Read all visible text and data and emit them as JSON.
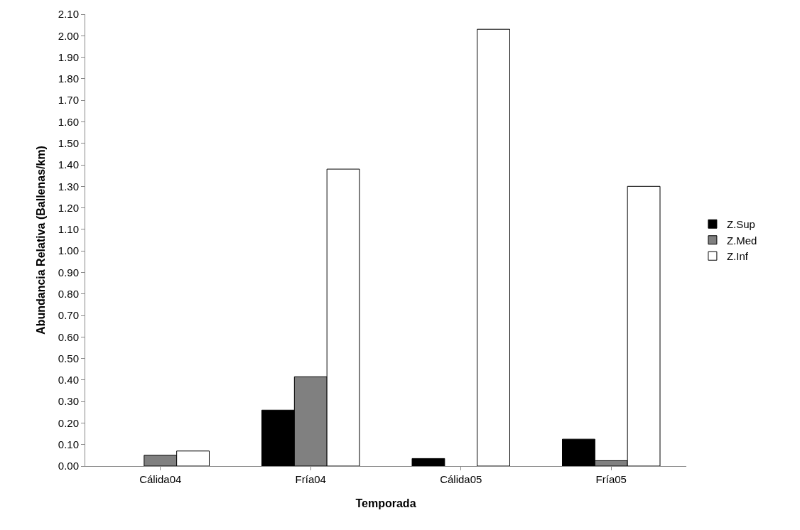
{
  "chart_data": {
    "type": "bar",
    "xlabel": "Temporada",
    "ylabel": "Abundancia Relativa (Ballenas/km)",
    "categories": [
      "Cálida04",
      "Fría04",
      "Cálida05",
      "Fría05"
    ],
    "series": [
      {
        "name": "Z.Sup",
        "color": "#000000",
        "values": [
          null,
          0.26,
          0.035,
          0.125
        ]
      },
      {
        "name": "Z.Med",
        "color": "#808080",
        "values": [
          0.05,
          0.415,
          null,
          0.025
        ]
      },
      {
        "name": "Z.Inf",
        "color": "#ffffff",
        "values": [
          0.07,
          1.38,
          2.03,
          1.3
        ]
      }
    ],
    "ylim": [
      0,
      2.1
    ],
    "yticks": [
      {
        "value": 0,
        "label": "0.00"
      },
      {
        "value": 0.1,
        "label": "0.10"
      },
      {
        "value": 0.2,
        "label": "0.20"
      },
      {
        "value": 0.3,
        "label": "0.30"
      },
      {
        "value": 0.4,
        "label": "0.40"
      },
      {
        "value": 0.5,
        "label": "0.50"
      },
      {
        "value": 0.6,
        "label": "0.60"
      },
      {
        "value": 0.7,
        "label": "0.70"
      },
      {
        "value": 0.8,
        "label": "0.80"
      },
      {
        "value": 0.9,
        "label": "0.90"
      },
      {
        "value": 1,
        "label": "1.00"
      },
      {
        "value": 1.1,
        "label": "1.10"
      },
      {
        "value": 1.2,
        "label": "1.20"
      },
      {
        "value": 1.3,
        "label": "1.30"
      },
      {
        "value": 1.4,
        "label": "1.40"
      },
      {
        "value": 1.5,
        "label": "1.50"
      },
      {
        "value": 1.6,
        "label": "1.60"
      },
      {
        "value": 1.7,
        "label": "1.70"
      },
      {
        "value": 1.8,
        "label": "1.80"
      },
      {
        "value": 1.9,
        "label": "1.90"
      },
      {
        "value": 2,
        "label": "2.00"
      },
      {
        "value": 2.1,
        "label": "2.10"
      }
    ],
    "grid": false,
    "legend": "right"
  }
}
